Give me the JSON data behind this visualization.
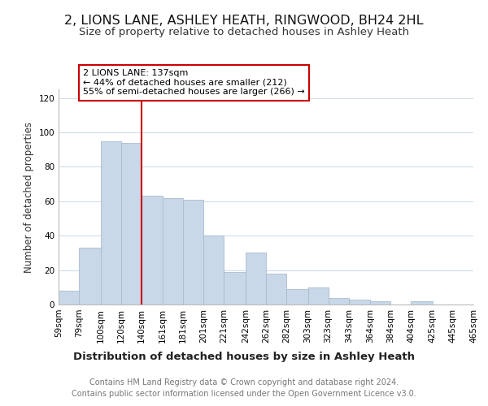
{
  "title": "2, LIONS LANE, ASHLEY HEATH, RINGWOOD, BH24 2HL",
  "subtitle": "Size of property relative to detached houses in Ashley Heath",
  "xlabel": "Distribution of detached houses by size in Ashley Heath",
  "ylabel": "Number of detached properties",
  "bar_left_edges": [
    59,
    79,
    100,
    120,
    140,
    161,
    181,
    201,
    221,
    242,
    262,
    282,
    303,
    323,
    343,
    364,
    384,
    404,
    425,
    445
  ],
  "bar_widths": [
    20,
    21,
    20,
    20,
    21,
    20,
    20,
    20,
    21,
    20,
    20,
    21,
    20,
    20,
    21,
    20,
    20,
    21,
    20,
    20
  ],
  "bar_heights": [
    8,
    33,
    95,
    94,
    63,
    62,
    61,
    40,
    19,
    30,
    18,
    9,
    10,
    4,
    3,
    2,
    0,
    2,
    0,
    0
  ],
  "bar_color": "#c8d8e8",
  "bar_edge_color": "#aabcce",
  "bar_linewidth": 0.6,
  "tick_labels": [
    "59sqm",
    "79sqm",
    "100sqm",
    "120sqm",
    "140sqm",
    "161sqm",
    "181sqm",
    "201sqm",
    "221sqm",
    "242sqm",
    "262sqm",
    "282sqm",
    "303sqm",
    "323sqm",
    "343sqm",
    "364sqm",
    "384sqm",
    "404sqm",
    "425sqm",
    "445sqm",
    "465sqm"
  ],
  "vline_x": 140,
  "vline_color": "#cc0000",
  "vline_linewidth": 1.5,
  "annotation_text": "2 LIONS LANE: 137sqm\n← 44% of detached houses are smaller (212)\n55% of semi-detached houses are larger (266) →",
  "annotation_box_color": "#ffffff",
  "annotation_edge_color": "#cc0000",
  "ylim": [
    0,
    125
  ],
  "yticks": [
    0,
    20,
    40,
    60,
    80,
    100,
    120
  ],
  "xlim": [
    59,
    465
  ],
  "background_color": "#ffffff",
  "grid_color": "#d0dce8",
  "footer_line1": "Contains HM Land Registry data © Crown copyright and database right 2024.",
  "footer_line2": "Contains public sector information licensed under the Open Government Licence v3.0.",
  "title_fontsize": 11.5,
  "subtitle_fontsize": 9.5,
  "xlabel_fontsize": 9.5,
  "ylabel_fontsize": 8.5,
  "tick_fontsize": 7.5,
  "annotation_fontsize": 8,
  "footer_fontsize": 7
}
